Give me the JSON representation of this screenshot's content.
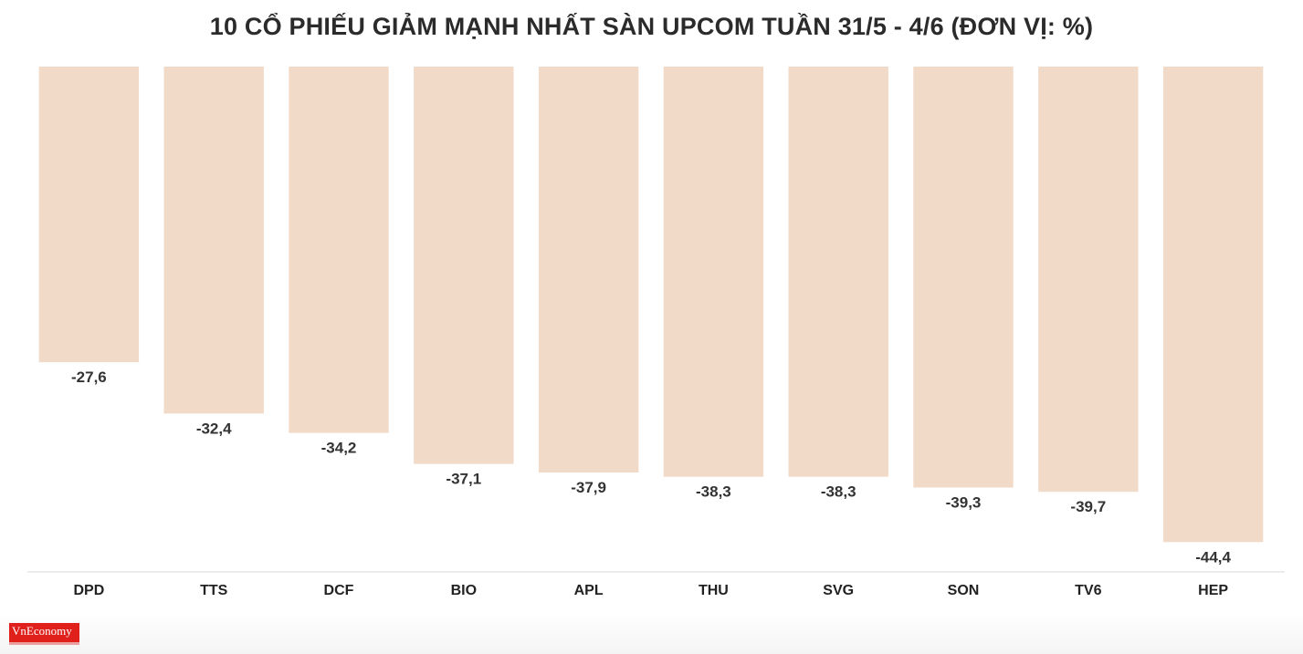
{
  "chart_data": {
    "type": "bar",
    "title": "10 CỔ PHIẾU GIẢM MẠNH NHẤT SÀN UPCOM TUẦN 31/5 - 4/6 (ĐƠN VỊ: %)",
    "categories": [
      "DPD",
      "TTS",
      "DCF",
      "BIO",
      "APL",
      "THU",
      "SVG",
      "SON",
      "TV6",
      "HEP"
    ],
    "values": [
      -27.6,
      -32.4,
      -34.2,
      -37.1,
      -37.9,
      -38.3,
      -38.3,
      -39.3,
      -39.7,
      -44.4
    ],
    "value_labels": [
      "-27,6",
      "-32,4",
      "-34,2",
      "-37,1",
      "-37,9",
      "-38,3",
      "-38,3",
      "-39,3",
      "-39,7",
      "-44,4"
    ],
    "ylim": [
      -46.5,
      0
    ],
    "grid": false,
    "bar_color": "#f2dac8"
  },
  "branding": {
    "logo_text": "VnEconomy",
    "logo_color": "#e0201b"
  }
}
